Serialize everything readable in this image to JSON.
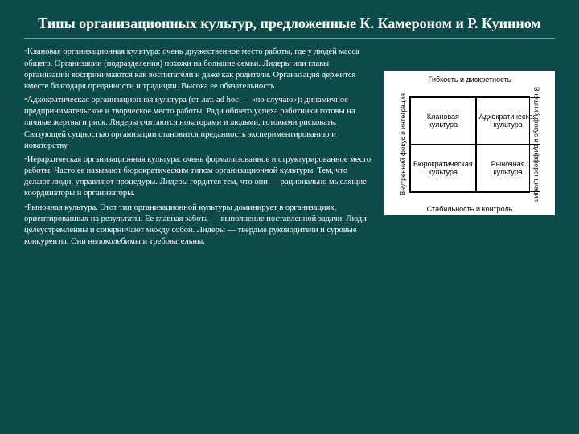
{
  "title": "Типы организационных культур, предложенные К. Камероном и Р. Куинном",
  "bullets": [
    {
      "lead": "Клановая организационная культура:",
      "text": " очень дружественное место работы, где у людей масса общего. Организации (подразделения) похожи на большие семьи. Лидеры или главы организаций воспринимаются как воспитатели и даже как родители. Организация держится вместе благодаря преданности и традиции. Высока ее обязательность."
    },
    {
      "lead": "Адхократическая организационная культура",
      "text": " (от лат. ad hoc — «по случаю»): динамичное предпринимательское и творческое место работы. Ради общего успеха работники готовы на личные жертвы и риск. Лидеры считаются новаторами и людьми, готовыми рисковать. Связующей сущностью организации становится преданность экспериментированию и новаторству."
    },
    {
      "lead": "Иерархическая организационная культура:",
      "text": " очень формализованное и структурированное место работы. Часто ее называют бюрократическим типом организационной культуры. Тем, что делают люди, управляют процедуры. Лидеры гордятся тем, что они — рационально мыслящие координаторы и организаторы."
    },
    {
      "lead": "Рыночная культура.",
      "text": " Этот тип организационной культуры доминирует в организациях, ориентированных на результаты. Ее главная забота — выполнение поставленной задачи. Люди целеустремленны и соперничают между собой. Лидеры — твердые руководители и суровые конкуренты. Они непоколебимы и требовательны."
    }
  ],
  "diagram": {
    "top": "Гибкость и дискретность",
    "bottom": "Стабильность и контроль",
    "left": "Внутренний фокус и интеграция",
    "right": "Внешний фокус и дифференциация",
    "cells": {
      "tl": "Клановая культура",
      "tr": "Адхократическая культура",
      "bl": "Бюрократическая культура",
      "br": "Рыночная культура"
    }
  }
}
